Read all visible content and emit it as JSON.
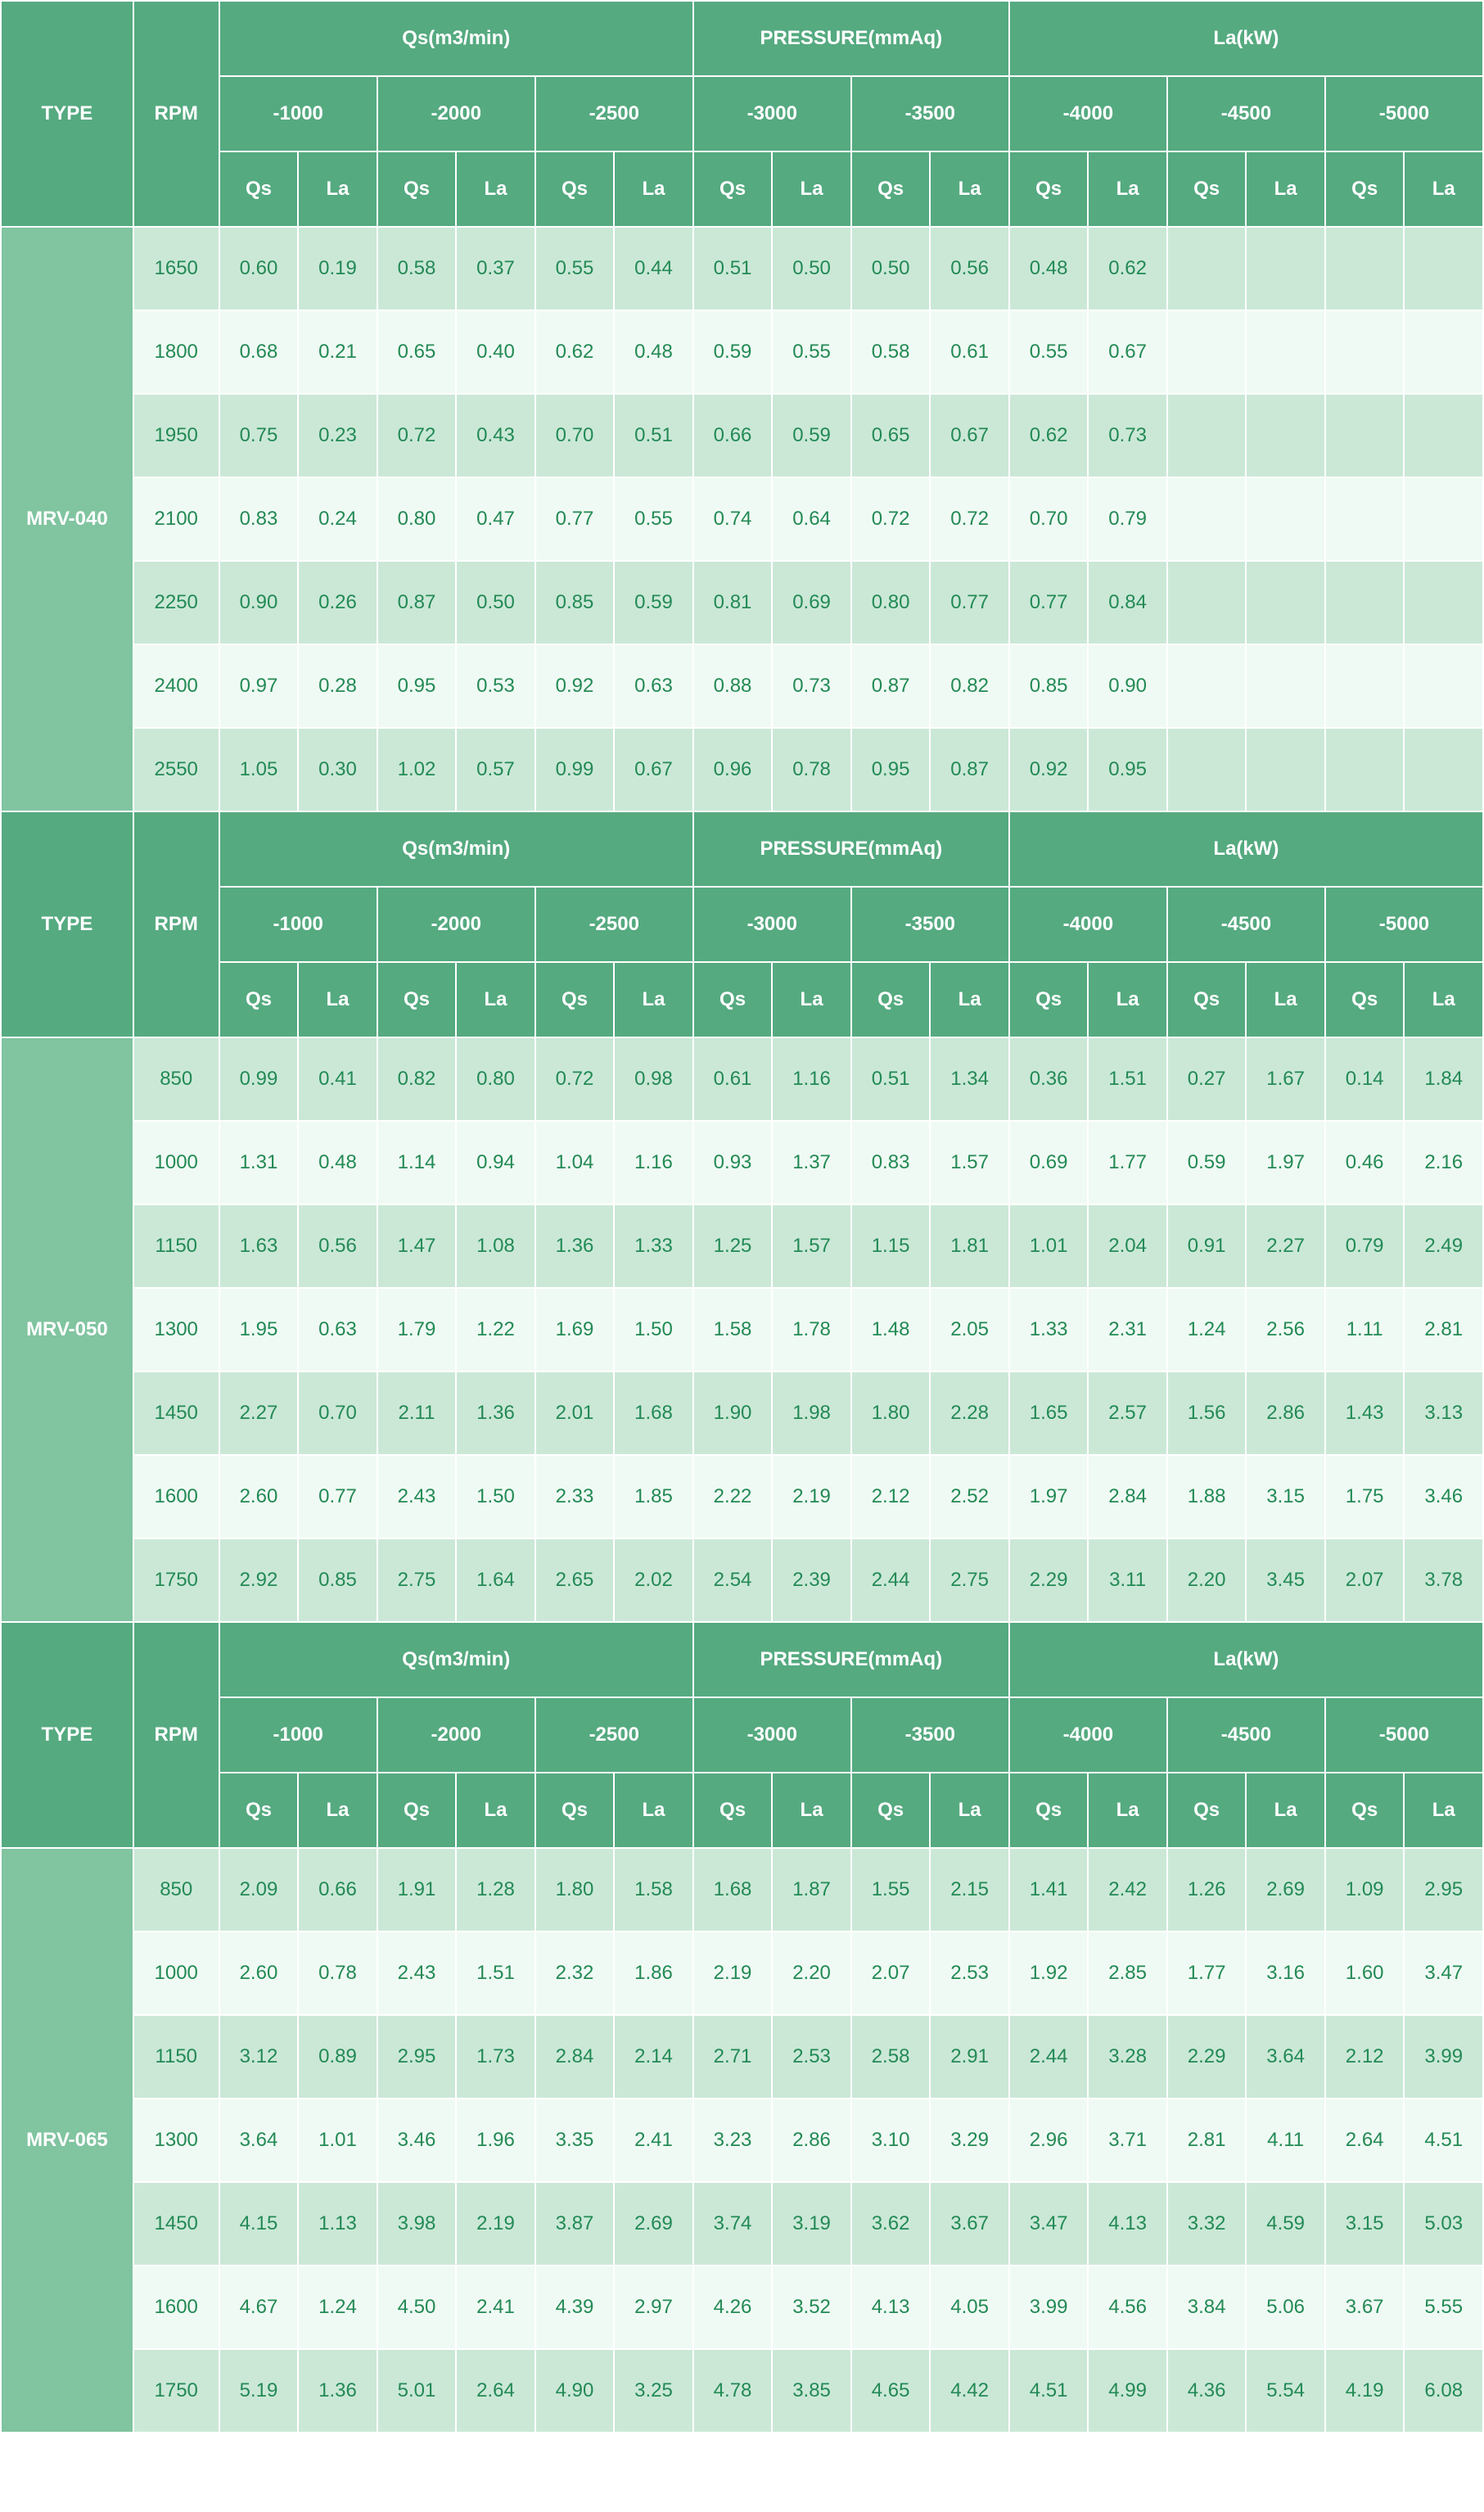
{
  "header": {
    "type": "TYPE",
    "rpm": "RPM",
    "groups": [
      "Qs(m3/min)",
      "PRESSURE(mmAq)",
      "La(kW)"
    ],
    "pressures": [
      "-1000",
      "-2000",
      "-2500",
      "-3000",
      "-3500",
      "-4000",
      "-4500",
      "-5000"
    ],
    "sub": [
      "Qs",
      "La"
    ]
  },
  "colors": {
    "header_bg": "#55aa80",
    "header_fg": "#ffffff",
    "type_bg": "#80c4a0",
    "type_fg": "#ffffff",
    "row_even_bg": "#cbe8d7",
    "row_odd_bg": "#f0faf4",
    "data_fg": "#238a55"
  },
  "sections": [
    {
      "type": "MRV-040",
      "rows": [
        {
          "rpm": "1650",
          "cells": [
            "0.60",
            "0.19",
            "0.58",
            "0.37",
            "0.55",
            "0.44",
            "0.51",
            "0.50",
            "0.50",
            "0.56",
            "0.48",
            "0.62",
            "",
            "",
            "",
            ""
          ]
        },
        {
          "rpm": "1800",
          "cells": [
            "0.68",
            "0.21",
            "0.65",
            "0.40",
            "0.62",
            "0.48",
            "0.59",
            "0.55",
            "0.58",
            "0.61",
            "0.55",
            "0.67",
            "",
            "",
            "",
            ""
          ]
        },
        {
          "rpm": "1950",
          "cells": [
            "0.75",
            "0.23",
            "0.72",
            "0.43",
            "0.70",
            "0.51",
            "0.66",
            "0.59",
            "0.65",
            "0.67",
            "0.62",
            "0.73",
            "",
            "",
            "",
            ""
          ]
        },
        {
          "rpm": "2100",
          "cells": [
            "0.83",
            "0.24",
            "0.80",
            "0.47",
            "0.77",
            "0.55",
            "0.74",
            "0.64",
            "0.72",
            "0.72",
            "0.70",
            "0.79",
            "",
            "",
            "",
            ""
          ]
        },
        {
          "rpm": "2250",
          "cells": [
            "0.90",
            "0.26",
            "0.87",
            "0.50",
            "0.85",
            "0.59",
            "0.81",
            "0.69",
            "0.80",
            "0.77",
            "0.77",
            "0.84",
            "",
            "",
            "",
            ""
          ]
        },
        {
          "rpm": "2400",
          "cells": [
            "0.97",
            "0.28",
            "0.95",
            "0.53",
            "0.92",
            "0.63",
            "0.88",
            "0.73",
            "0.87",
            "0.82",
            "0.85",
            "0.90",
            "",
            "",
            "",
            ""
          ]
        },
        {
          "rpm": "2550",
          "cells": [
            "1.05",
            "0.30",
            "1.02",
            "0.57",
            "0.99",
            "0.67",
            "0.96",
            "0.78",
            "0.95",
            "0.87",
            "0.92",
            "0.95",
            "",
            "",
            "",
            ""
          ]
        }
      ]
    },
    {
      "type": "MRV-050",
      "rows": [
        {
          "rpm": "850",
          "cells": [
            "0.99",
            "0.41",
            "0.82",
            "0.80",
            "0.72",
            "0.98",
            "0.61",
            "1.16",
            "0.51",
            "1.34",
            "0.36",
            "1.51",
            "0.27",
            "1.67",
            "0.14",
            "1.84"
          ]
        },
        {
          "rpm": "1000",
          "cells": [
            "1.31",
            "0.48",
            "1.14",
            "0.94",
            "1.04",
            "1.16",
            "0.93",
            "1.37",
            "0.83",
            "1.57",
            "0.69",
            "1.77",
            "0.59",
            "1.97",
            "0.46",
            "2.16"
          ]
        },
        {
          "rpm": "1150",
          "cells": [
            "1.63",
            "0.56",
            "1.47",
            "1.08",
            "1.36",
            "1.33",
            "1.25",
            "1.57",
            "1.15",
            "1.81",
            "1.01",
            "2.04",
            "0.91",
            "2.27",
            "0.79",
            "2.49"
          ]
        },
        {
          "rpm": "1300",
          "cells": [
            "1.95",
            "0.63",
            "1.79",
            "1.22",
            "1.69",
            "1.50",
            "1.58",
            "1.78",
            "1.48",
            "2.05",
            "1.33",
            "2.31",
            "1.24",
            "2.56",
            "1.11",
            "2.81"
          ]
        },
        {
          "rpm": "1450",
          "cells": [
            "2.27",
            "0.70",
            "2.11",
            "1.36",
            "2.01",
            "1.68",
            "1.90",
            "1.98",
            "1.80",
            "2.28",
            "1.65",
            "2.57",
            "1.56",
            "2.86",
            "1.43",
            "3.13"
          ]
        },
        {
          "rpm": "1600",
          "cells": [
            "2.60",
            "0.77",
            "2.43",
            "1.50",
            "2.33",
            "1.85",
            "2.22",
            "2.19",
            "2.12",
            "2.52",
            "1.97",
            "2.84",
            "1.88",
            "3.15",
            "1.75",
            "3.46"
          ]
        },
        {
          "rpm": "1750",
          "cells": [
            "2.92",
            "0.85",
            "2.75",
            "1.64",
            "2.65",
            "2.02",
            "2.54",
            "2.39",
            "2.44",
            "2.75",
            "2.29",
            "3.11",
            "2.20",
            "3.45",
            "2.07",
            "3.78"
          ]
        }
      ]
    },
    {
      "type": "MRV-065",
      "rows": [
        {
          "rpm": "850",
          "cells": [
            "2.09",
            "0.66",
            "1.91",
            "1.28",
            "1.80",
            "1.58",
            "1.68",
            "1.87",
            "1.55",
            "2.15",
            "1.41",
            "2.42",
            "1.26",
            "2.69",
            "1.09",
            "2.95"
          ]
        },
        {
          "rpm": "1000",
          "cells": [
            "2.60",
            "0.78",
            "2.43",
            "1.51",
            "2.32",
            "1.86",
            "2.19",
            "2.20",
            "2.07",
            "2.53",
            "1.92",
            "2.85",
            "1.77",
            "3.16",
            "1.60",
            "3.47"
          ]
        },
        {
          "rpm": "1150",
          "cells": [
            "3.12",
            "0.89",
            "2.95",
            "1.73",
            "2.84",
            "2.14",
            "2.71",
            "2.53",
            "2.58",
            "2.91",
            "2.44",
            "3.28",
            "2.29",
            "3.64",
            "2.12",
            "3.99"
          ]
        },
        {
          "rpm": "1300",
          "cells": [
            "3.64",
            "1.01",
            "3.46",
            "1.96",
            "3.35",
            "2.41",
            "3.23",
            "2.86",
            "3.10",
            "3.29",
            "2.96",
            "3.71",
            "2.81",
            "4.11",
            "2.64",
            "4.51"
          ]
        },
        {
          "rpm": "1450",
          "cells": [
            "4.15",
            "1.13",
            "3.98",
            "2.19",
            "3.87",
            "2.69",
            "3.74",
            "3.19",
            "3.62",
            "3.67",
            "3.47",
            "4.13",
            "3.32",
            "4.59",
            "3.15",
            "5.03"
          ]
        },
        {
          "rpm": "1600",
          "cells": [
            "4.67",
            "1.24",
            "4.50",
            "2.41",
            "4.39",
            "2.97",
            "4.26",
            "3.52",
            "4.13",
            "4.05",
            "3.99",
            "4.56",
            "3.84",
            "5.06",
            "3.67",
            "5.55"
          ]
        },
        {
          "rpm": "1750",
          "cells": [
            "5.19",
            "1.36",
            "5.01",
            "2.64",
            "4.90",
            "3.25",
            "4.78",
            "3.85",
            "4.65",
            "4.42",
            "4.51",
            "4.99",
            "4.36",
            "5.54",
            "4.19",
            "6.08"
          ]
        }
      ]
    }
  ]
}
